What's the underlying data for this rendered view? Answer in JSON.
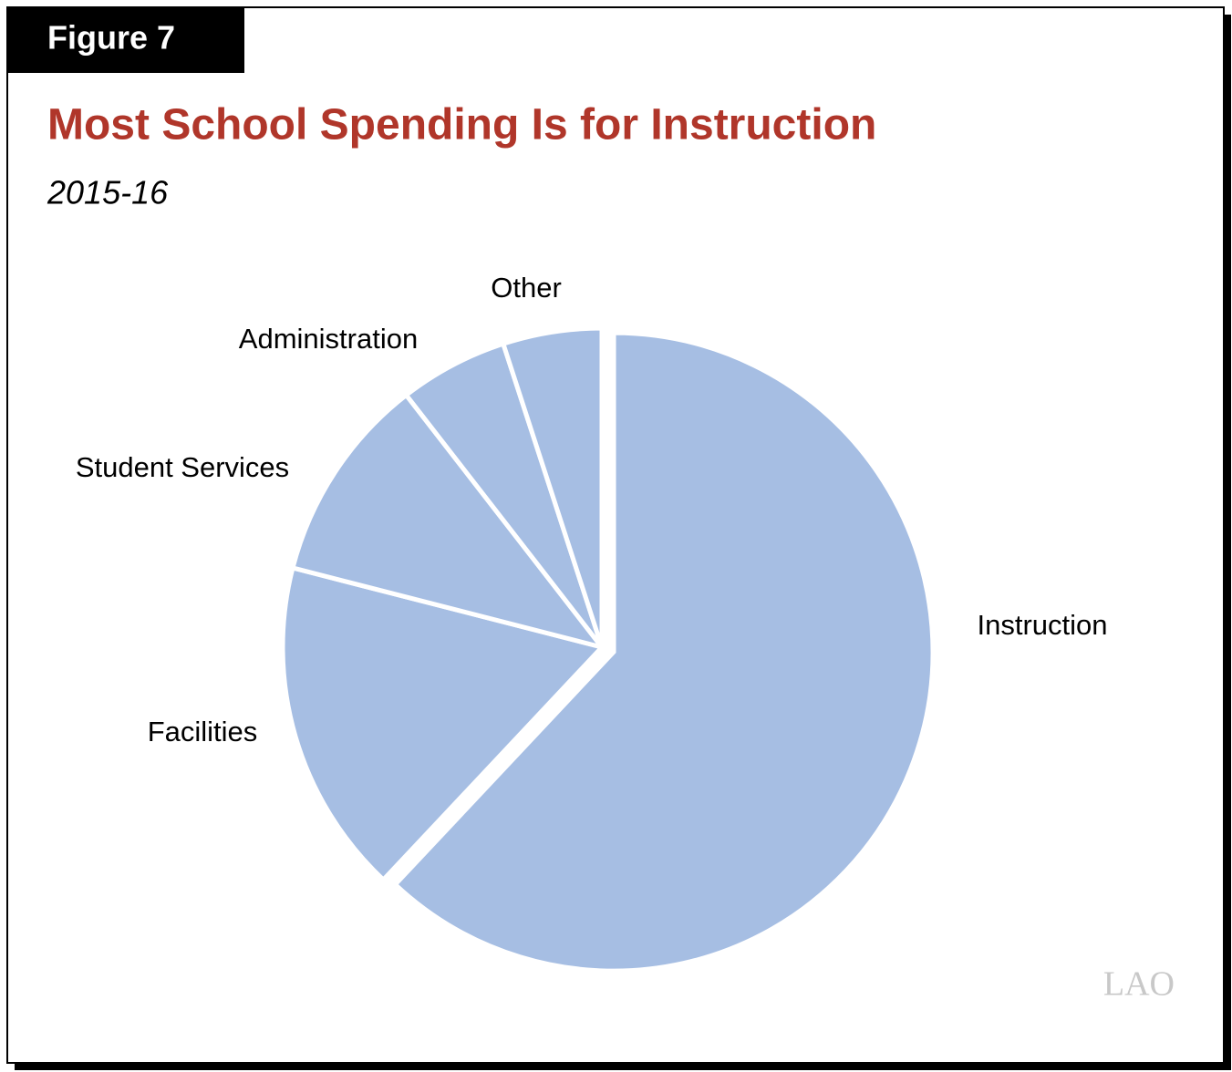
{
  "chart_data": {
    "type": "pie",
    "figure_label": "Figure 7",
    "title": "Most School Spending Is for Instruction",
    "subtitle": "2015-16",
    "categories": [
      "Instruction",
      "Facilities",
      "Student Services",
      "Administration",
      "Other"
    ],
    "values": [
      62,
      17,
      10.5,
      5.5,
      5
    ],
    "color": "#a6bee3",
    "logo": "LAO"
  }
}
